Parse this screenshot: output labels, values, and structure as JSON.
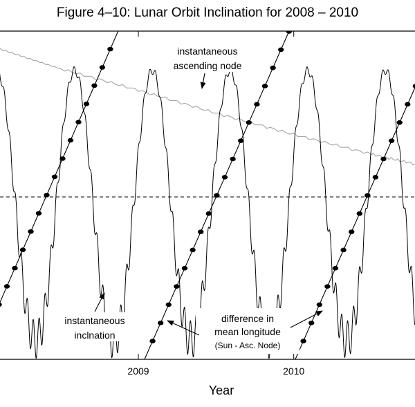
{
  "chart_data": {
    "type": "line",
    "title": "Figure 4–10: Lunar Orbit Inclination for 2008 – 2010",
    "xlabel": "Year",
    "ylabel": "",
    "x_unit": "decimal year",
    "xlim": [
      2008.11,
      2010.78
    ],
    "x_ticks": [
      2009,
      2010
    ],
    "x_tick_labels": [
      "2009",
      "2010"
    ],
    "grid": false,
    "reference_line": {
      "style": "dashed",
      "description": "mean inclination level"
    },
    "series": [
      {
        "name": "instantaneous inclination",
        "style": "solid",
        "color": "#000000",
        "peaks_x": [
          2008.09,
          2008.6,
          2009.1,
          2009.6,
          2010.1,
          2010.6
        ],
        "troughs_x": [
          2008.36,
          2008.86,
          2009.36,
          2009.86,
          2010.36
        ],
        "peak_level": 0.88,
        "trough_level": 0.06
      },
      {
        "name": "instantaneous ascending node",
        "style": "solid",
        "color": "#aaaaaa",
        "x": [
          2008.11,
          2008.5,
          2009.0,
          2009.5,
          2010.0,
          2010.5,
          2010.78
        ],
        "level": [
          0.945,
          0.885,
          0.82,
          0.75,
          0.685,
          0.625,
          0.595
        ]
      },
      {
        "name": "difference in mean longitude (Sun - Asc. Node)",
        "style": "solid with dot markers",
        "color": "#000000",
        "segments": [
          {
            "x0": 2007.95,
            "x1": 2008.87
          },
          {
            "x0": 2009.04,
            "x1": 2009.97
          },
          {
            "x0": 2010.01,
            "x1": 2010.94
          }
        ],
        "marker_spacing_days": 15
      }
    ],
    "annotations": [
      {
        "id": "node",
        "lines": [
          "instantaneous",
          "ascending node"
        ]
      },
      {
        "id": "incl",
        "lines": [
          "instantaneous",
          "inclnation"
        ]
      },
      {
        "id": "diff",
        "lines": [
          "difference in",
          "mean longitude",
          "(Sun - Asc. Node)"
        ]
      }
    ]
  }
}
